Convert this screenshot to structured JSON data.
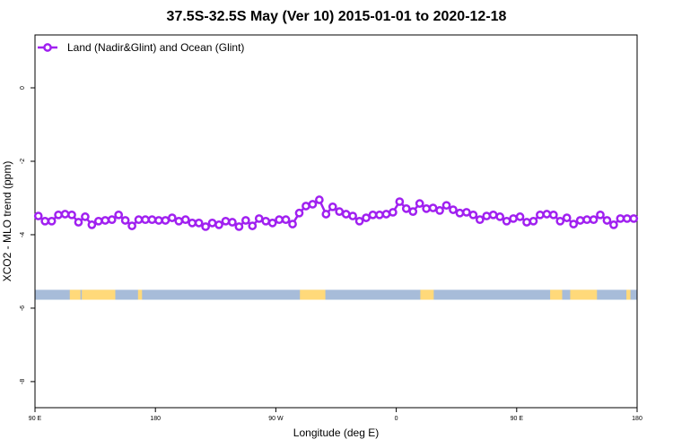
{
  "chart_data": {
    "type": "line",
    "title": "37.5S-32.5S May (Ver 10)   2015-01-01 to 2020-12-18",
    "xlabel": "Longitude (deg E)",
    "ylabel": "XCO2 - MLO trend (ppm)",
    "xticks": [
      "90 E",
      "180",
      "90 W",
      "0",
      "90 E",
      "180"
    ],
    "yticks": [
      0,
      -2,
      -4,
      -6,
      -8
    ],
    "ylim": [
      -8.71,
      1.44
    ],
    "grid": false,
    "legend_placement": "top-left",
    "series": [
      {
        "name": "Land (Nadir&Glint) and Ocean (Glint)",
        "color": "#a020f0",
        "marker": "open-circle",
        "x": [
          92.5,
          97.5,
          102.5,
          107.5,
          112.5,
          117.5,
          122.5,
          127.5,
          132.5,
          137.5,
          142.5,
          147.5,
          152.5,
          157.5,
          162.5,
          167.5,
          172.5,
          177.5,
          -177.5,
          -172.5,
          -167.5,
          -162.5,
          -157.5,
          -152.5,
          -147.5,
          -142.5,
          -137.5,
          -132.5,
          -127.5,
          -122.5,
          -117.5,
          -112.5,
          -107.5,
          -102.5,
          -97.5,
          -92.5,
          -87.5,
          -82.5,
          -77.5,
          -72.5,
          -67.5,
          -62.5,
          -57.5,
          -52.5,
          -47.5,
          -42.5,
          -37.5,
          -32.5,
          -27.5,
          -22.5,
          -17.5,
          -12.5,
          -7.5,
          -2.5,
          2.5,
          7.5,
          12.5,
          17.5,
          22.5,
          27.5,
          32.5,
          37.5,
          42.5,
          47.5,
          52.5,
          57.5,
          62.5,
          67.5,
          72.5,
          77.5,
          82.5,
          87.5,
          92.5,
          97.5,
          102.5,
          107.5,
          112.5,
          117.5,
          122.5,
          127.5,
          132.5,
          137.5,
          142.5,
          147.5,
          152.5,
          157.5,
          162.5,
          167.5,
          172.5,
          177.5
        ],
        "y": [
          -3.49,
          -3.63,
          -3.63,
          -3.46,
          -3.44,
          -3.46,
          -3.66,
          -3.51,
          -3.73,
          -3.63,
          -3.61,
          -3.59,
          -3.46,
          -3.61,
          -3.76,
          -3.59,
          -3.59,
          -3.59,
          -3.61,
          -3.61,
          -3.54,
          -3.63,
          -3.59,
          -3.68,
          -3.68,
          -3.78,
          -3.68,
          -3.73,
          -3.63,
          -3.66,
          -3.78,
          -3.61,
          -3.76,
          -3.56,
          -3.63,
          -3.68,
          -3.59,
          -3.59,
          -3.71,
          -3.41,
          -3.22,
          -3.17,
          -3.05,
          -3.44,
          -3.24,
          -3.37,
          -3.44,
          -3.49,
          -3.63,
          -3.54,
          -3.46,
          -3.46,
          -3.44,
          -3.39,
          -3.1,
          -3.29,
          -3.37,
          -3.15,
          -3.29,
          -3.27,
          -3.34,
          -3.2,
          -3.32,
          -3.41,
          -3.39,
          -3.46,
          -3.59,
          -3.49,
          -3.46,
          -3.51,
          -3.63,
          -3.56,
          -3.51,
          -3.66,
          -3.63,
          -3.46,
          -3.44,
          -3.46,
          -3.63,
          -3.54,
          -3.71,
          -3.61,
          -3.59,
          -3.59,
          -3.46,
          -3.61,
          -3.73,
          -3.56,
          -3.56,
          -3.56
        ]
      }
    ],
    "land_ocean_strip": {
      "y_range": [
        -5.5,
        -5.77
      ],
      "ocean_color": "#a7bcd9",
      "land_color": "#ffd97a",
      "land_lon_ranges": [
        [
          116,
          124
        ],
        [
          125,
          150
        ],
        [
          167,
          170
        ],
        [
          -72,
          -53
        ],
        [
          18,
          28
        ],
        [
          115,
          124
        ],
        [
          130,
          150
        ],
        [
          172,
          175
        ]
      ]
    }
  }
}
